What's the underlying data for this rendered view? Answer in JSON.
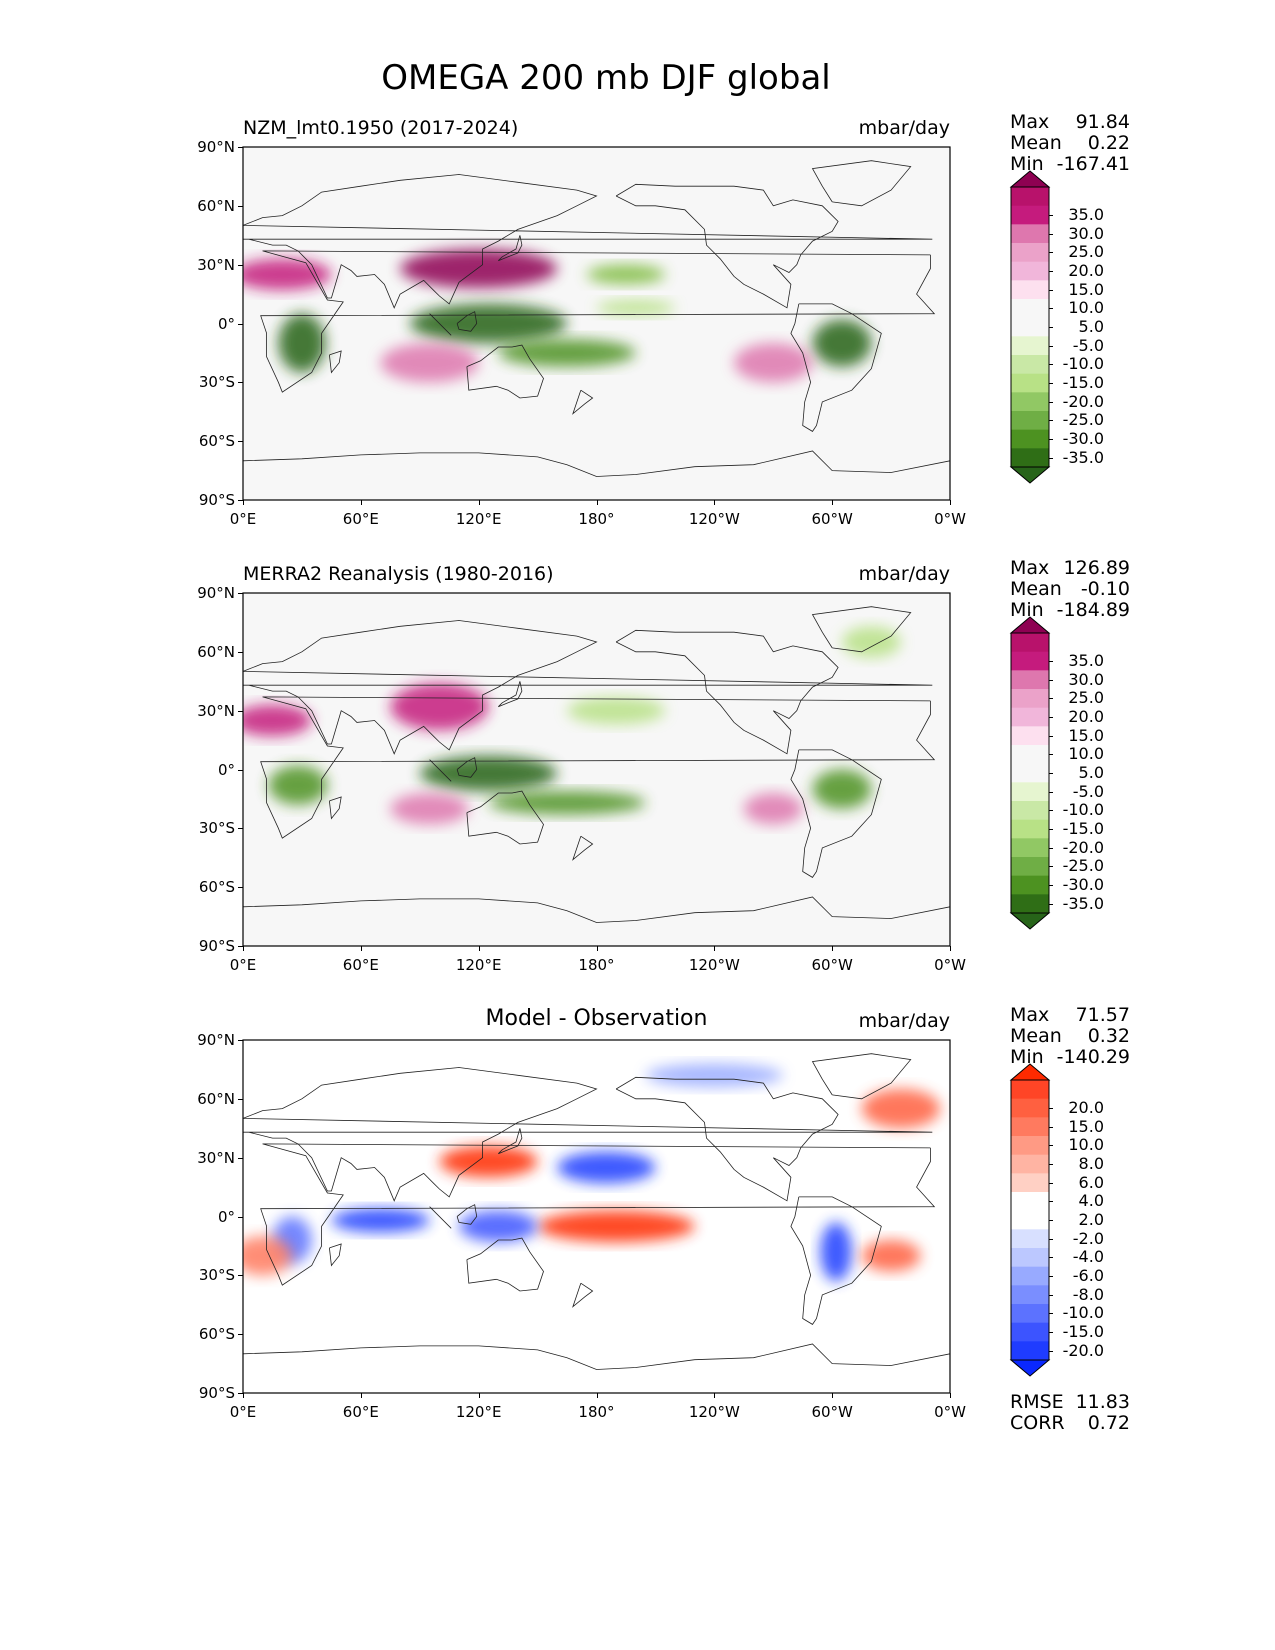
{
  "figure": {
    "title": "OMEGA 200 mb DJF global"
  },
  "map_axes": {
    "lon_ticks": [
      "0°E",
      "60°E",
      "120°E",
      "180°",
      "120°W",
      "60°W",
      "0°W"
    ],
    "lat_ticks": [
      "90°N",
      "60°N",
      "30°N",
      "0°",
      "30°S",
      "60°S",
      "90°S"
    ]
  },
  "panels": [
    {
      "name": "model",
      "left_title": "NZM_lmt0.1950 (2017-2024)",
      "center_title": "",
      "units": "mbar/day",
      "stats": [
        {
          "label": "Max",
          "value": "91.84"
        },
        {
          "label": "Mean",
          "value": "0.22"
        },
        {
          "label": "Min",
          "value": "-167.41"
        }
      ],
      "colorbar": {
        "palette": "PiYG_r",
        "labels": [
          "35.0",
          "30.0",
          "25.0",
          "20.0",
          "15.0",
          "10.0",
          "5.0",
          "-5.0",
          "-10.0",
          "-15.0",
          "-20.0",
          "-25.0",
          "-30.0",
          "-35.0"
        ],
        "colors": [
          "#8e0152",
          "#b8126b",
          "#c51b7d",
          "#de77ae",
          "#eba2c9",
          "#f1b6da",
          "#fde0ef",
          "#f7f7f7",
          "#f7f7f7",
          "#e6f5d0",
          "#c9e8a6",
          "#b8e186",
          "#91c864",
          "#6fae45",
          "#4d9221",
          "#2f6e16",
          "#276419"
        ]
      },
      "footer": [],
      "blobs": [
        {
          "region": "subtropical jet asia (sinking)",
          "lon": 120,
          "lat": 28,
          "rx": 40,
          "ry": 10,
          "color": "#8e0152"
        },
        {
          "region": "north africa (sinking)",
          "lon": 20,
          "lat": 25,
          "rx": 25,
          "ry": 8,
          "color": "#c51b7d"
        },
        {
          "region": "maritime continent (rising)",
          "lon": 125,
          "lat": 0,
          "rx": 40,
          "ry": 10,
          "color": "#276419"
        },
        {
          "region": "south pacific convergence zone (rising)",
          "lon": 165,
          "lat": -15,
          "rx": 35,
          "ry": 7,
          "color": "#4d9221"
        },
        {
          "region": "southern africa (rising)",
          "lon": 30,
          "lat": -10,
          "rx": 12,
          "ry": 15,
          "color": "#276419"
        },
        {
          "region": "amazon (rising)",
          "lon": -55,
          "lat": -10,
          "rx": 15,
          "ry": 12,
          "color": "#276419"
        },
        {
          "region": "north pacific (rising)",
          "lon": -165,
          "lat": 25,
          "rx": 20,
          "ry": 5,
          "color": "#7fbc41"
        },
        {
          "region": "south indian ocean (sinking)",
          "lon": 95,
          "lat": -20,
          "rx": 25,
          "ry": 10,
          "color": "#de77ae"
        },
        {
          "region": "southeast pacific (sinking)",
          "lon": -90,
          "lat": -20,
          "rx": 20,
          "ry": 10,
          "color": "#de77ae"
        },
        {
          "region": "central pacific itcz (rising)",
          "lon": -160,
          "lat": 8,
          "rx": 20,
          "ry": 4,
          "color": "#b8e186"
        }
      ]
    },
    {
      "name": "observation",
      "left_title": "MERRA2 Reanalysis (1980-2016)",
      "center_title": "",
      "units": "mbar/day",
      "stats": [
        {
          "label": "Max",
          "value": "126.89"
        },
        {
          "label": "Mean",
          "value": "-0.10"
        },
        {
          "label": "Min",
          "value": "-184.89"
        }
      ],
      "colorbar": {
        "palette": "PiYG_r",
        "labels": [
          "35.0",
          "30.0",
          "25.0",
          "20.0",
          "15.0",
          "10.0",
          "5.0",
          "-5.0",
          "-10.0",
          "-15.0",
          "-20.0",
          "-25.0",
          "-30.0",
          "-35.0"
        ],
        "colors": [
          "#8e0152",
          "#b8126b",
          "#c51b7d",
          "#de77ae",
          "#eba2c9",
          "#f1b6da",
          "#fde0ef",
          "#f7f7f7",
          "#f7f7f7",
          "#e6f5d0",
          "#c9e8a6",
          "#b8e186",
          "#91c864",
          "#6fae45",
          "#4d9221",
          "#2f6e16",
          "#276419"
        ]
      },
      "footer": [],
      "blobs": [
        {
          "region": "tibetan plateau (sinking)",
          "lon": 100,
          "lat": 32,
          "rx": 25,
          "ry": 12,
          "color": "#c51b7d"
        },
        {
          "region": "north africa (sinking)",
          "lon": 15,
          "lat": 25,
          "rx": 20,
          "ry": 8,
          "color": "#c51b7d"
        },
        {
          "region": "maritime continent (rising)",
          "lon": 125,
          "lat": -2,
          "rx": 35,
          "ry": 9,
          "color": "#276419"
        },
        {
          "region": "south pacific convergence zone (rising)",
          "lon": 165,
          "lat": -17,
          "rx": 40,
          "ry": 6,
          "color": "#4d9221"
        },
        {
          "region": "southern africa (rising)",
          "lon": 28,
          "lat": -8,
          "rx": 15,
          "ry": 10,
          "color": "#4d9221"
        },
        {
          "region": "amazon (rising)",
          "lon": -55,
          "lat": -10,
          "rx": 15,
          "ry": 10,
          "color": "#4d9221"
        },
        {
          "region": "north pacific (rising)",
          "lon": -170,
          "lat": 30,
          "rx": 25,
          "ry": 7,
          "color": "#b8e186"
        },
        {
          "region": "south indian ocean (sinking)",
          "lon": 95,
          "lat": -20,
          "rx": 20,
          "ry": 8,
          "color": "#de77ae"
        },
        {
          "region": "southeast pacific (sinking)",
          "lon": -90,
          "lat": -20,
          "rx": 15,
          "ry": 8,
          "color": "#de77ae"
        },
        {
          "region": "north atlantic (rising)",
          "lon": -40,
          "lat": 65,
          "rx": 15,
          "ry": 8,
          "color": "#b8e186"
        }
      ]
    },
    {
      "name": "difference",
      "left_title": "",
      "center_title": "Model - Observation",
      "units": "mbar/day",
      "stats": [
        {
          "label": "Max",
          "value": "71.57"
        },
        {
          "label": "Mean",
          "value": "0.32"
        },
        {
          "label": "Min",
          "value": "-140.29"
        }
      ],
      "colorbar": {
        "palette": "bwr",
        "labels": [
          "20.0",
          "15.0",
          "10.0",
          "8.0",
          "6.0",
          "4.0",
          "2.0",
          "-2.0",
          "-4.0",
          "-6.0",
          "-8.0",
          "-10.0",
          "-15.0",
          "-20.0"
        ],
        "colors": [
          "#ff2a00",
          "#ff4526",
          "#ff6040",
          "#ff7a5f",
          "#ff9a84",
          "#ffb4a3",
          "#ffd0c4",
          "#ffffff",
          "#ffffff",
          "#d8e0ff",
          "#bcc8ff",
          "#98aaff",
          "#7a8eff",
          "#5c72ff",
          "#3c54ff",
          "#1f3cff",
          "#0a28ff"
        ]
      },
      "footer": [
        {
          "label": "RMSE",
          "value": "11.83"
        },
        {
          "label": "CORR",
          "value": "0.72"
        }
      ],
      "blobs": [
        {
          "region": "east asia (positive)",
          "lon": 125,
          "lat": 28,
          "rx": 25,
          "ry": 8,
          "color": "#ff2a00"
        },
        {
          "region": "north pacific (negative)",
          "lon": -175,
          "lat": 25,
          "rx": 25,
          "ry": 8,
          "color": "#1f3cff"
        },
        {
          "region": "indian ocean (negative)",
          "lon": 70,
          "lat": -2,
          "rx": 25,
          "ry": 6,
          "color": "#1f3cff"
        },
        {
          "region": "pacific diagonal (positive)",
          "lon": -170,
          "lat": -5,
          "rx": 40,
          "ry": 8,
          "color": "#ff2a00"
        },
        {
          "region": "maritime continent (negative)",
          "lon": 130,
          "lat": -5,
          "rx": 20,
          "ry": 8,
          "color": "#3c54ff"
        },
        {
          "region": "africa (negative)",
          "lon": 25,
          "lat": -12,
          "rx": 10,
          "ry": 12,
          "color": "#5c72ff"
        },
        {
          "region": "south america (negative)",
          "lon": -58,
          "lat": -18,
          "rx": 8,
          "ry": 15,
          "color": "#1f3cff"
        },
        {
          "region": "arctic (negative)",
          "lon": -120,
          "lat": 72,
          "rx": 35,
          "ry": 6,
          "color": "#98aaff"
        },
        {
          "region": "north atlantic (positive)",
          "lon": -25,
          "lat": 55,
          "rx": 20,
          "ry": 10,
          "color": "#ff6040"
        },
        {
          "region": "south atlantic (positive)",
          "lon": -30,
          "lat": -20,
          "rx": 15,
          "ry": 8,
          "color": "#ff6040"
        },
        {
          "region": "south indian ocean (positive)",
          "lon": 10,
          "lat": -20,
          "rx": 15,
          "ry": 10,
          "color": "#ff7a5f"
        }
      ]
    }
  ]
}
